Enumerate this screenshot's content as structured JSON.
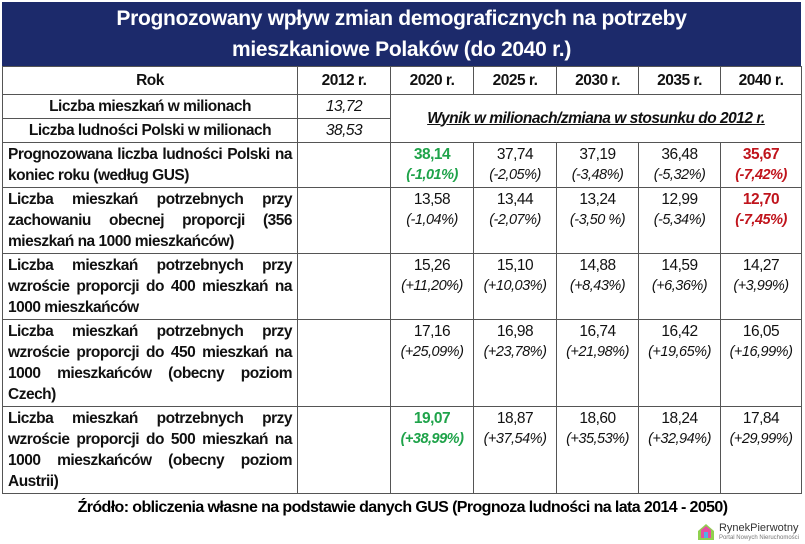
{
  "title": [
    "Prognozowany wpływ zmian demograficznych na potrzeby",
    "mieszkaniowe Polaków (do 2040 r.)"
  ],
  "header": {
    "row_label": "Rok",
    "years": [
      "2012 r.",
      "2020 r.",
      "2025 r.",
      "2030 r.",
      "2035 r.",
      "2040 r."
    ]
  },
  "base_rows": [
    {
      "label": "Liczba mieszkań w milionach",
      "value": "13,72"
    },
    {
      "label": "Liczba ludności Polski w milionach",
      "value": "38,53"
    }
  ],
  "note": "Wynik w milionach/zmiana w stosunku do 2012 r.",
  "rows": [
    {
      "label": "Prognozowana liczba ludności Polski na koniec roku (według GUS)",
      "cells": [
        {
          "v": "38,14",
          "p": "(-1,01%)",
          "c": "green"
        },
        {
          "v": "37,74",
          "p": "(-2,05%)"
        },
        {
          "v": "37,19",
          "p": "(-3,48%)"
        },
        {
          "v": "36,48",
          "p": "(-5,32%)"
        },
        {
          "v": "35,67",
          "p": "(-7,42%)",
          "c": "red"
        }
      ]
    },
    {
      "label": "Liczba mieszkań potrzebnych przy zachowaniu obecnej proporcji (356 mieszkań na 1000 mieszkańców)",
      "cells": [
        {
          "v": "13,58",
          "p": "(-1,04%)"
        },
        {
          "v": "13,44",
          "p": "(-2,07%)"
        },
        {
          "v": "13,24",
          "p": "(-3,50 %)"
        },
        {
          "v": "12,99",
          "p": "(-5,34%)"
        },
        {
          "v": "12,70",
          "p": "(-7,45%)",
          "c": "red"
        }
      ]
    },
    {
      "label": "Liczba mieszkań potrzebnych przy wzroście proporcji do 400 mieszkań na 1000 mieszkańców",
      "cells": [
        {
          "v": "15,26",
          "p": "(+11,20%)"
        },
        {
          "v": "15,10",
          "p": "(+10,03%)"
        },
        {
          "v": "14,88",
          "p": "(+8,43%)"
        },
        {
          "v": "14,59",
          "p": "(+6,36%)"
        },
        {
          "v": "14,27",
          "p": "(+3,99%)"
        }
      ]
    },
    {
      "label": "Liczba mieszkań potrzebnych przy wzroście proporcji do 450 mieszkań na 1000 mieszkańców (obecny poziom Czech)",
      "cells": [
        {
          "v": "17,16",
          "p": "(+25,09%)"
        },
        {
          "v": "16,98",
          "p": "(+23,78%)"
        },
        {
          "v": "16,74",
          "p": "(+21,98%)"
        },
        {
          "v": "16,42",
          "p": "(+19,65%)"
        },
        {
          "v": "16,05",
          "p": "(+16,99%)"
        }
      ]
    },
    {
      "label": "Liczba mieszkań potrzebnych przy wzroście proporcji do 500 mieszkań na 1000 mieszkańców (obecny poziom Austrii)",
      "cells": [
        {
          "v": "19,07",
          "p": "(+38,99%)",
          "c": "green"
        },
        {
          "v": "18,87",
          "p": "(+37,54%)"
        },
        {
          "v": "18,60",
          "p": "(+35,53%)"
        },
        {
          "v": "18,24",
          "p": "(+32,94%)"
        },
        {
          "v": "17,84",
          "p": "(+29,99%)"
        }
      ]
    }
  ],
  "source": "Źródło: obliczenia własne na podstawie danych GUS (Prognoza ludności na lata 2014 - 2050)",
  "logo": {
    "name": "RynekPierwotny",
    "tagline": "Portal Nowych Nieruchomości"
  },
  "colors": {
    "title_bg": "#1c2a6b",
    "highlight_green": "#1fa34a",
    "highlight_red": "#c0141c"
  }
}
